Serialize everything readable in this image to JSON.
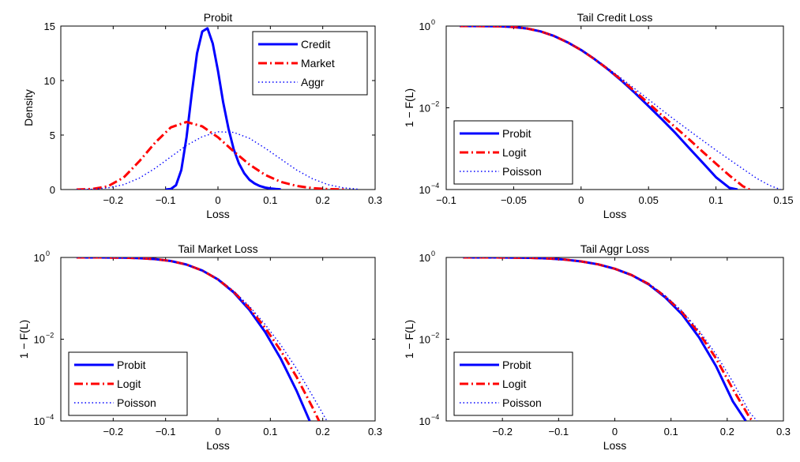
{
  "chart_data": [
    {
      "type": "line",
      "title": "Probit",
      "xlabel": "Loss",
      "ylabel": "Density",
      "xlim": [
        -0.3,
        0.3
      ],
      "ylim": [
        0,
        15
      ],
      "yscale": "linear",
      "xticks": [
        -0.2,
        -0.1,
        0,
        0.1,
        0.2,
        0.3
      ],
      "xtick_labels": [
        "−0.2",
        "−0.1",
        "0",
        "0.1",
        "0.2",
        "0.3"
      ],
      "yticks": [
        0,
        5,
        10,
        15
      ],
      "ytick_labels": [
        "0",
        "5",
        "10",
        "15"
      ],
      "legend": "top-right",
      "series": [
        {
          "name": "Credit",
          "color": "#0000ff",
          "dash": "solid",
          "x": [
            -0.1,
            -0.09,
            -0.08,
            -0.07,
            -0.06,
            -0.05,
            -0.04,
            -0.03,
            -0.02,
            -0.01,
            0,
            0.01,
            0.02,
            0.03,
            0.04,
            0.05,
            0.06,
            0.07,
            0.08,
            0.09,
            0.1,
            0.11,
            0.12
          ],
          "y": [
            0.0,
            0.05,
            0.4,
            1.8,
            4.8,
            8.8,
            12.5,
            14.5,
            14.8,
            13.4,
            10.9,
            8.0,
            5.6,
            3.7,
            2.4,
            1.5,
            0.9,
            0.55,
            0.32,
            0.18,
            0.1,
            0.05,
            0.02
          ]
        },
        {
          "name": "Market",
          "color": "#ff0000",
          "dash": "dashdot",
          "x": [
            -0.27,
            -0.24,
            -0.21,
            -0.18,
            -0.15,
            -0.12,
            -0.09,
            -0.06,
            -0.03,
            0,
            0.03,
            0.06,
            0.09,
            0.12,
            0.15,
            0.18,
            0.21,
            0.24
          ],
          "y": [
            0.0,
            0.05,
            0.3,
            1.1,
            2.6,
            4.3,
            5.7,
            6.2,
            5.8,
            4.8,
            3.5,
            2.3,
            1.35,
            0.7,
            0.33,
            0.13,
            0.04,
            0.01
          ]
        },
        {
          "name": "Aggr",
          "color": "#0000ff",
          "dash": "dotted",
          "x": [
            -0.27,
            -0.24,
            -0.21,
            -0.18,
            -0.15,
            -0.12,
            -0.09,
            -0.06,
            -0.03,
            0,
            0.03,
            0.06,
            0.09,
            0.12,
            0.15,
            0.18,
            0.21,
            0.24,
            0.27
          ],
          "y": [
            0.0,
            0.03,
            0.15,
            0.45,
            1.05,
            1.95,
            3.0,
            4.05,
            4.85,
            5.3,
            5.25,
            4.7,
            3.8,
            2.8,
            1.8,
            1.0,
            0.45,
            0.15,
            0.03
          ]
        }
      ]
    },
    {
      "type": "line",
      "title": "Tail Credit Loss",
      "xlabel": "Loss",
      "ylabel": "1 − F(L)",
      "xlim": [
        -0.1,
        0.15
      ],
      "ylim": [
        0.0001,
        1
      ],
      "yscale": "log",
      "xticks": [
        -0.1,
        -0.05,
        0,
        0.05,
        0.1,
        0.15
      ],
      "xtick_labels": [
        "−0.1",
        "−0.05",
        "0",
        "0.05",
        "0.1",
        "0.15"
      ],
      "yticks": [
        0.0001,
        0.01,
        1
      ],
      "ytick_labels": [
        {
          "base": "10",
          "exp": "−4"
        },
        {
          "base": "10",
          "exp": "−2"
        },
        {
          "base": "10",
          "exp": "0"
        }
      ],
      "legend": "bottom-left",
      "series": [
        {
          "name": "Probit",
          "color": "#0000ff",
          "dash": "solid",
          "x": [
            -0.09,
            -0.08,
            -0.07,
            -0.06,
            -0.05,
            -0.04,
            -0.03,
            -0.02,
            -0.01,
            0,
            0.01,
            0.02,
            0.03,
            0.04,
            0.05,
            0.06,
            0.07,
            0.08,
            0.09,
            0.1,
            0.11,
            0.116
          ],
          "y": [
            1,
            1,
            0.995,
            0.985,
            0.95,
            0.87,
            0.74,
            0.57,
            0.4,
            0.26,
            0.155,
            0.087,
            0.046,
            0.023,
            0.011,
            0.0052,
            0.0024,
            0.00105,
            0.00046,
            0.0002,
            0.00011,
            0.0001
          ]
        },
        {
          "name": "Logit",
          "color": "#ff0000",
          "dash": "dashdot",
          "x": [
            -0.09,
            -0.08,
            -0.07,
            -0.06,
            -0.05,
            -0.04,
            -0.03,
            -0.02,
            -0.01,
            0,
            0.01,
            0.02,
            0.03,
            0.04,
            0.05,
            0.06,
            0.07,
            0.08,
            0.09,
            0.1,
            0.11,
            0.12,
            0.125
          ],
          "y": [
            1,
            1,
            0.995,
            0.985,
            0.95,
            0.87,
            0.74,
            0.57,
            0.4,
            0.26,
            0.155,
            0.088,
            0.048,
            0.025,
            0.013,
            0.0065,
            0.0033,
            0.0017,
            0.00085,
            0.00043,
            0.00022,
            0.00012,
            0.0001
          ]
        },
        {
          "name": "Poisson",
          "color": "#0000ff",
          "dash": "dotted",
          "x": [
            -0.09,
            -0.08,
            -0.07,
            -0.06,
            -0.05,
            -0.04,
            -0.03,
            -0.02,
            -0.01,
            0,
            0.01,
            0.02,
            0.03,
            0.04,
            0.05,
            0.06,
            0.07,
            0.08,
            0.09,
            0.1,
            0.11,
            0.12,
            0.13,
            0.14,
            0.148
          ],
          "y": [
            1,
            1,
            0.995,
            0.985,
            0.95,
            0.87,
            0.74,
            0.57,
            0.4,
            0.26,
            0.16,
            0.092,
            0.052,
            0.029,
            0.016,
            0.0088,
            0.0049,
            0.0028,
            0.0016,
            0.00092,
            0.00054,
            0.00032,
            0.00019,
            0.000125,
            0.0001
          ]
        }
      ]
    },
    {
      "type": "line",
      "title": "Tail Market Loss",
      "xlabel": "Loss",
      "ylabel": "1 − F(L)",
      "xlim": [
        -0.3,
        0.3
      ],
      "ylim": [
        0.0001,
        1
      ],
      "yscale": "log",
      "xticks": [
        -0.2,
        -0.1,
        0,
        0.1,
        0.2,
        0.3
      ],
      "xtick_labels": [
        "−0.2",
        "−0.1",
        "0",
        "0.1",
        "0.2",
        "0.3"
      ],
      "yticks": [
        0.0001,
        0.01,
        1
      ],
      "ytick_labels": [
        {
          "base": "10",
          "exp": "−4"
        },
        {
          "base": "10",
          "exp": "−2"
        },
        {
          "base": "10",
          "exp": "0"
        }
      ],
      "legend": "bottom-left",
      "series": [
        {
          "name": "Probit",
          "color": "#0000ff",
          "dash": "solid",
          "x": [
            -0.27,
            -0.24,
            -0.21,
            -0.18,
            -0.15,
            -0.12,
            -0.09,
            -0.06,
            -0.03,
            0,
            0.03,
            0.06,
            0.09,
            0.12,
            0.15,
            0.175
          ],
          "y": [
            1,
            1,
            0.995,
            0.985,
            0.96,
            0.91,
            0.82,
            0.67,
            0.48,
            0.29,
            0.14,
            0.052,
            0.015,
            0.0033,
            0.00055,
            0.0001
          ]
        },
        {
          "name": "Logit",
          "color": "#ff0000",
          "dash": "dashdot",
          "x": [
            -0.27,
            -0.24,
            -0.21,
            -0.18,
            -0.15,
            -0.12,
            -0.09,
            -0.06,
            -0.03,
            0,
            0.03,
            0.06,
            0.09,
            0.12,
            0.15,
            0.18,
            0.193
          ],
          "y": [
            1,
            1,
            0.995,
            0.985,
            0.96,
            0.91,
            0.82,
            0.67,
            0.48,
            0.29,
            0.145,
            0.058,
            0.019,
            0.0052,
            0.0012,
            0.00022,
            0.0001
          ]
        },
        {
          "name": "Poisson",
          "color": "#0000ff",
          "dash": "dotted",
          "x": [
            -0.27,
            -0.24,
            -0.21,
            -0.18,
            -0.15,
            -0.12,
            -0.09,
            -0.06,
            -0.03,
            0,
            0.03,
            0.06,
            0.09,
            0.12,
            0.15,
            0.18,
            0.208
          ],
          "y": [
            1,
            1,
            0.995,
            0.985,
            0.96,
            0.91,
            0.82,
            0.67,
            0.48,
            0.3,
            0.15,
            0.064,
            0.023,
            0.0072,
            0.0019,
            0.00042,
            0.0001
          ]
        }
      ]
    },
    {
      "type": "line",
      "title": "Tail Aggr Loss",
      "xlabel": "Loss",
      "ylabel": "1 − F(L)",
      "xlim": [
        -0.3,
        0.3
      ],
      "ylim": [
        0.0001,
        1
      ],
      "yscale": "log",
      "xticks": [
        -0.2,
        -0.1,
        0,
        0.1,
        0.2,
        0.3
      ],
      "xtick_labels": [
        "−0.2",
        "−0.1",
        "0",
        "0.1",
        "0.2",
        "0.3"
      ],
      "yticks": [
        0.0001,
        0.01,
        1
      ],
      "ytick_labels": [
        {
          "base": "10",
          "exp": "−4"
        },
        {
          "base": "10",
          "exp": "−2"
        },
        {
          "base": "10",
          "exp": "0"
        }
      ],
      "legend": "bottom-left",
      "series": [
        {
          "name": "Probit",
          "color": "#0000ff",
          "dash": "solid",
          "x": [
            -0.27,
            -0.24,
            -0.21,
            -0.18,
            -0.15,
            -0.12,
            -0.09,
            -0.06,
            -0.03,
            0,
            0.03,
            0.06,
            0.09,
            0.12,
            0.15,
            0.18,
            0.21,
            0.233
          ],
          "y": [
            1,
            1,
            0.998,
            0.993,
            0.98,
            0.95,
            0.89,
            0.8,
            0.68,
            0.53,
            0.37,
            0.22,
            0.105,
            0.04,
            0.011,
            0.0022,
            0.0003,
            0.0001
          ]
        },
        {
          "name": "Logit",
          "color": "#ff0000",
          "dash": "dashdot",
          "x": [
            -0.27,
            -0.24,
            -0.21,
            -0.18,
            -0.15,
            -0.12,
            -0.09,
            -0.06,
            -0.03,
            0,
            0.03,
            0.06,
            0.09,
            0.12,
            0.15,
            0.18,
            0.21,
            0.24,
            0.245
          ],
          "y": [
            1,
            1,
            0.998,
            0.993,
            0.98,
            0.95,
            0.89,
            0.8,
            0.68,
            0.53,
            0.37,
            0.225,
            0.11,
            0.045,
            0.014,
            0.0034,
            0.0006,
            0.00012,
            0.0001
          ]
        },
        {
          "name": "Poisson",
          "color": "#0000ff",
          "dash": "dotted",
          "x": [
            -0.27,
            -0.24,
            -0.21,
            -0.18,
            -0.15,
            -0.12,
            -0.09,
            -0.06,
            -0.03,
            0,
            0.03,
            0.06,
            0.09,
            0.12,
            0.15,
            0.18,
            0.21,
            0.24,
            0.253
          ],
          "y": [
            1,
            1,
            0.998,
            0.993,
            0.98,
            0.95,
            0.89,
            0.8,
            0.68,
            0.53,
            0.37,
            0.228,
            0.115,
            0.048,
            0.016,
            0.0043,
            0.0009,
            0.00016,
            0.0001
          ]
        }
      ]
    }
  ]
}
